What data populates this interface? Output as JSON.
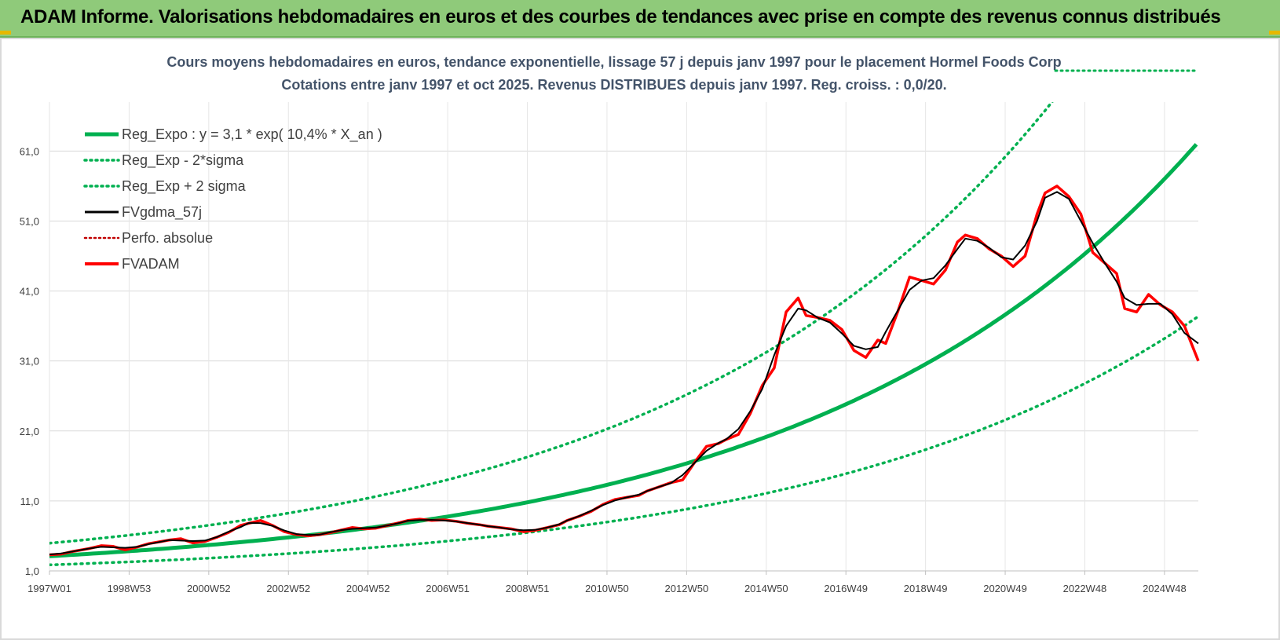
{
  "banner": {
    "title": "ADAM Informe. Valorisations hebdomadaires en euros et des courbes de tendances avec prise en compte des revenus connus distribués"
  },
  "colors": {
    "banner_bg": "#8fca7a",
    "reg_expo": "#00b050",
    "fvgdma": "#000000",
    "fvadam": "#ff0000",
    "perfo": "#c00000",
    "title": "#44546a"
  },
  "chart_data": {
    "type": "line",
    "title_line1": "Cours moyens hebdomadaires en euros, tendance exponentielle, lissage 57 j depuis janv 1997 pour le placement Hormel Foods Corp",
    "title_line2": "Cotations entre janv 1997 et oct 2025. Revenus DISTRIBUES depuis janv 1997. Reg. croiss. : 0,0/20.",
    "x_range": [
      1997.0,
      2025.85
    ],
    "ylim": [
      1,
      68
    ],
    "y_ticks": [
      1,
      11,
      21,
      31,
      41,
      51,
      61
    ],
    "y_tick_labels": [
      "1,0",
      "11,0",
      "21,0",
      "31,0",
      "41,0",
      "51,0",
      "61,0"
    ],
    "x_tick_labels": [
      "1997W01",
      "1998W53",
      "2000W52",
      "2002W52",
      "2004W52",
      "2006W51",
      "2008W51",
      "2010W50",
      "2012W50",
      "2014W50",
      "2016W49",
      "2018W49",
      "2020W49",
      "2022W48",
      "2024W48"
    ],
    "x_tick_positions": [
      1997.0,
      1999.0,
      2001.0,
      2003.0,
      2005.0,
      2007.0,
      2009.0,
      2011.0,
      2013.0,
      2015.0,
      2017.0,
      2019.0,
      2021.0,
      2023.0,
      2025.0
    ],
    "legend": [
      "Reg_Expo : y = 3,1 * exp( 10,4% *  X_an )",
      "Reg_Exp - 2*sigma",
      "Reg_Exp + 2 sigma",
      "FVgdma_57j",
      "Perfo. absolue",
      "FVADAM"
    ],
    "regression": {
      "a": 3.1,
      "rate": 0.104,
      "start_year": 1997.0
    },
    "series": [
      {
        "name": "Reg_Expo : y = 3,1 * exp( 10,4% *  X_an )",
        "style": "solid-thick",
        "color": "#00b050",
        "values": "regression"
      },
      {
        "name": "Reg_Exp - 2*sigma",
        "style": "dotted",
        "color": "#00b050",
        "factor": 0.6
      },
      {
        "name": "Reg_Exp + 2 sigma",
        "style": "dotted",
        "color": "#00b050",
        "factor": 1.6
      },
      {
        "name": "FVgdma_57j",
        "style": "solid",
        "color": "#000000"
      },
      {
        "name": "Perfo. absolue",
        "style": "dotted",
        "color": "#c00000"
      },
      {
        "name": "FVADAM",
        "style": "solid-thick",
        "color": "#ff0000",
        "x": [
          1997.0,
          1997.3,
          1997.6,
          1998.0,
          1998.3,
          1998.6,
          1998.9,
          1999.2,
          1999.5,
          1999.8,
          2000.0,
          2000.3,
          2000.6,
          2000.9,
          2001.2,
          2001.5,
          2001.8,
          2002.0,
          2002.3,
          2002.6,
          2002.9,
          2003.2,
          2003.5,
          2003.8,
          2004.0,
          2004.3,
          2004.6,
          2004.9,
          2005.2,
          2005.5,
          2005.8,
          2006.0,
          2006.3,
          2006.6,
          2006.9,
          2007.2,
          2007.5,
          2007.8,
          2008.0,
          2008.3,
          2008.6,
          2008.9,
          2009.2,
          2009.5,
          2009.8,
          2010.0,
          2010.3,
          2010.6,
          2010.9,
          2011.2,
          2011.5,
          2011.8,
          2012.0,
          2012.3,
          2012.6,
          2012.9,
          2013.2,
          2013.5,
          2013.8,
          2014.0,
          2014.3,
          2014.6,
          2014.9,
          2015.2,
          2015.5,
          2015.8,
          2016.0,
          2016.3,
          2016.6,
          2016.9,
          2017.2,
          2017.5,
          2017.8,
          2018.0,
          2018.3,
          2018.6,
          2018.9,
          2019.2,
          2019.5,
          2019.8,
          2020.0,
          2020.3,
          2020.6,
          2020.9,
          2021.2,
          2021.5,
          2021.8,
          2022.0,
          2022.3,
          2022.6,
          2022.9,
          2023.2,
          2023.5,
          2023.8,
          2024.0,
          2024.3,
          2024.6,
          2024.9,
          2025.2,
          2025.5,
          2025.85
        ],
        "values": [
          3.3,
          3.4,
          3.8,
          4.2,
          4.6,
          4.5,
          4.0,
          4.4,
          4.9,
          5.2,
          5.4,
          5.6,
          5.0,
          5.2,
          5.8,
          6.5,
          7.5,
          7.8,
          8.2,
          7.5,
          6.6,
          6.2,
          6.0,
          6.2,
          6.4,
          6.8,
          7.2,
          7.0,
          7.1,
          7.5,
          7.9,
          8.2,
          8.4,
          8.2,
          8.3,
          8.1,
          7.8,
          7.6,
          7.4,
          7.2,
          7.0,
          6.6,
          6.8,
          7.2,
          7.6,
          8.2,
          8.8,
          9.5,
          10.5,
          11.2,
          11.5,
          11.8,
          12.4,
          13.0,
          13.6,
          14.0,
          16.5,
          18.8,
          19.2,
          19.8,
          20.5,
          23.5,
          27.5,
          30.0,
          38.0,
          40.0,
          37.5,
          37.2,
          36.8,
          35.5,
          32.5,
          31.5,
          34.0,
          33.5,
          38.0,
          43.0,
          42.5,
          42.0,
          44.0,
          48.0,
          49.0,
          48.5,
          47.0,
          46.0,
          44.5,
          46.0,
          52.0,
          55.0,
          56.0,
          54.5,
          52.0,
          46.5,
          45.0,
          43.5,
          38.5,
          38.0,
          40.5,
          39.0,
          38.0,
          36.0,
          31.0
        ]
      }
    ]
  }
}
